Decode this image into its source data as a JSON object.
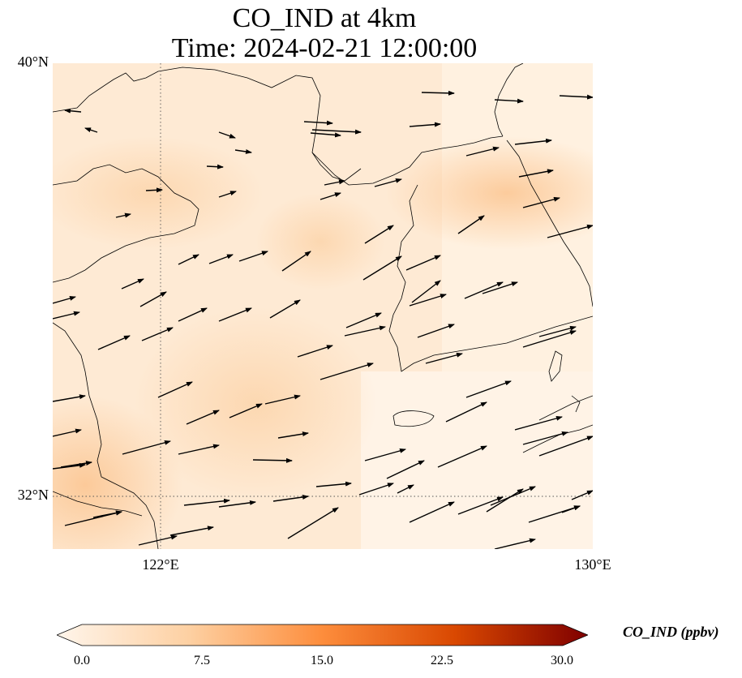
{
  "title": {
    "line1": "CO_IND at 4km",
    "line2": "Time: 2024-02-21 12:00:00"
  },
  "axes": {
    "lat_labels": [
      "40°N",
      "32°N"
    ],
    "lon_labels": [
      "122°E",
      "130°E"
    ]
  },
  "colorbar": {
    "label": "CO_IND (ppbv)",
    "ticks": [
      "0.0",
      "7.5",
      "15.0",
      "22.5",
      "30.0"
    ],
    "colors": [
      "#fff5eb",
      "#fdd0a2",
      "#fd8d3c",
      "#d94801",
      "#7f0000"
    ]
  },
  "colors": {
    "coastline": "#000000",
    "gridline": "#555555",
    "arrow": "#000000"
  }
}
